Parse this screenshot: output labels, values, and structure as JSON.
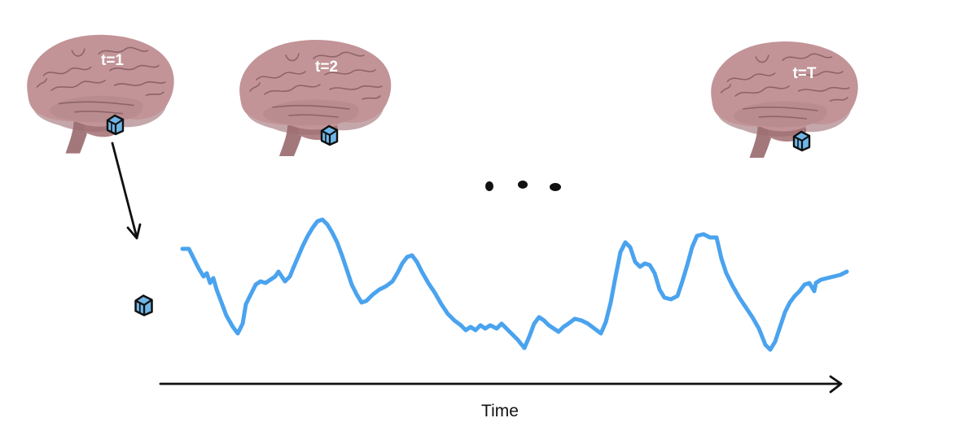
{
  "brains": [
    {
      "label": "t=1"
    },
    {
      "label": "t=2"
    },
    {
      "label": "t=T"
    }
  ],
  "axis": {
    "label": "Time"
  },
  "colors": {
    "signal": "#4aa3ee",
    "brain": "#c29497",
    "brain_dark": "#9c6d72",
    "voxel_fill": "#6fb6e8",
    "ink": "#111111"
  },
  "icons": {
    "brain": "brain-icon",
    "voxel": "voxel-cube-icon",
    "ellipsis": "ellipsis-dots-icon",
    "arrow": "arrow-icon"
  }
}
